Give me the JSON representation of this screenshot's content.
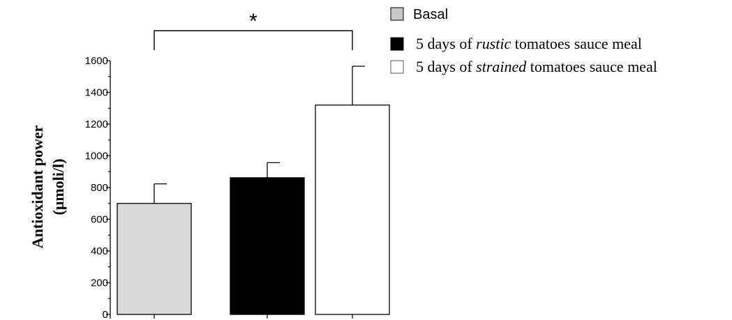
{
  "chart_data": {
    "type": "bar",
    "categories": [
      "Basal",
      "5 days of rustic tomatoes sauce meal",
      "5 days of strained tomatoes sauce meal"
    ],
    "values": [
      700,
      862,
      1320
    ],
    "error_plus": [
      123,
      95,
      245
    ],
    "colors": [
      "#d9d9d9",
      "#000000",
      "#ffffff"
    ],
    "ylabel_line1": "Antioxidant power",
    "ylabel_line2": "(μmoli/l)",
    "ylim": [
      0,
      1600
    ],
    "major_ticks": [
      0,
      200,
      400,
      600,
      800,
      1000,
      1200,
      1400,
      1600
    ],
    "minor_tick_step": 100,
    "significance": {
      "from_index": 0,
      "to_index": 2,
      "label": "*"
    },
    "legend": {
      "position": "top-right",
      "entries": [
        {
          "prefix": "Basal",
          "emph": "",
          "suffix": "",
          "color": "#c8c8c8"
        },
        {
          "prefix": "5 days of ",
          "emph": "rustic",
          "suffix": " tomatoes sauce meal",
          "color": "#000000"
        },
        {
          "prefix": "5 days of ",
          "emph": "strained",
          "suffix": " tomatoes sauce meal",
          "color": "#ffffff"
        }
      ]
    }
  }
}
